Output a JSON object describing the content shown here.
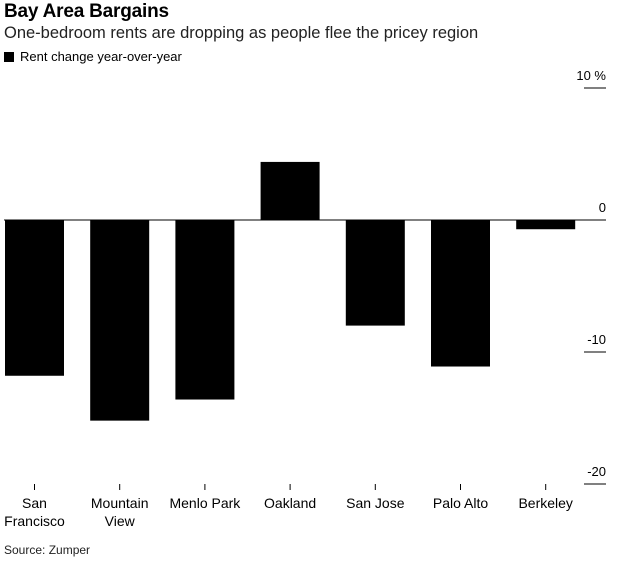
{
  "header": {
    "title": "Bay Area Bargains",
    "subtitle": "One-bedroom rents are dropping as people flee the pricey region"
  },
  "legend": {
    "label": "Rent change year-over-year",
    "color": "#000000"
  },
  "source": "Source: Zumper",
  "chart_data": {
    "type": "bar",
    "categories": [
      [
        "San",
        "Francisco"
      ],
      [
        "Mountain",
        "View"
      ],
      [
        "Menlo Park"
      ],
      [
        "Oakland"
      ],
      [
        "San Jose"
      ],
      [
        "Palo Alto"
      ],
      [
        "Berkeley"
      ]
    ],
    "values": [
      -11.8,
      -15.2,
      -13.6,
      4.4,
      -8.0,
      -11.1,
      -0.7
    ],
    "series": [
      {
        "name": "Rent change year-over-year",
        "values": [
          -11.8,
          -15.2,
          -13.6,
          4.4,
          -8.0,
          -11.1,
          -0.7
        ]
      }
    ],
    "ylim": [
      -20,
      10
    ],
    "yticks": [
      10,
      0,
      -10,
      -20
    ],
    "ytick_labels": [
      "10 %",
      "0",
      "-10",
      "-20"
    ],
    "bar_color": "#000000",
    "grid": false,
    "legend_position": "top-left"
  }
}
